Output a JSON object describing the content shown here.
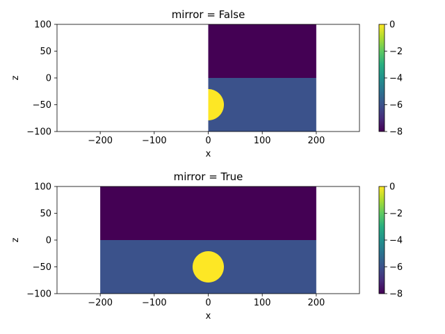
{
  "chart_data": [
    {
      "type": "heatmap",
      "title": "mirror = False",
      "xlabel": "x",
      "ylabel": "z",
      "xlim": [
        -280,
        280
      ],
      "ylim": [
        -100,
        100
      ],
      "xticks": [
        -200,
        -100,
        0,
        100,
        200
      ],
      "xtick_labels": [
        "−200",
        "−100",
        "0",
        "100",
        "200"
      ],
      "yticks": [
        -100,
        -50,
        0,
        50,
        100
      ],
      "ytick_labels": [
        "−100",
        "−50",
        "0",
        "50",
        "100"
      ],
      "regions": [
        {
          "shape": "rect",
          "x": [
            0,
            200
          ],
          "z": [
            0,
            100
          ],
          "value": -8,
          "color": "#440154"
        },
        {
          "shape": "rect",
          "x": [
            0,
            200
          ],
          "z": [
            -100,
            0
          ],
          "value": -6,
          "color": "#3b528b"
        },
        {
          "shape": "half-circle",
          "center": [
            0,
            -50
          ],
          "radius": 29,
          "value": 0,
          "color": "#fde725"
        }
      ],
      "colorbar": {
        "range": [
          -8,
          0
        ],
        "ticks": [
          0,
          -2,
          -4,
          -6,
          -8
        ],
        "tick_labels": [
          "0",
          "−2",
          "−4",
          "−6",
          "−8"
        ],
        "colormap": "viridis"
      }
    },
    {
      "type": "heatmap",
      "title": "mirror = True",
      "xlabel": "x",
      "ylabel": "z",
      "xlim": [
        -280,
        280
      ],
      "ylim": [
        -100,
        100
      ],
      "xticks": [
        -200,
        -100,
        0,
        100,
        200
      ],
      "xtick_labels": [
        "−200",
        "−100",
        "0",
        "100",
        "200"
      ],
      "yticks": [
        -100,
        -50,
        0,
        50,
        100
      ],
      "ytick_labels": [
        "−100",
        "−50",
        "0",
        "50",
        "100"
      ],
      "regions": [
        {
          "shape": "rect",
          "x": [
            -200,
            200
          ],
          "z": [
            0,
            100
          ],
          "value": -8,
          "color": "#440154"
        },
        {
          "shape": "rect",
          "x": [
            -200,
            200
          ],
          "z": [
            -100,
            0
          ],
          "value": -6,
          "color": "#3b528b"
        },
        {
          "shape": "circle",
          "center": [
            0,
            -50
          ],
          "radius": 29,
          "value": 0,
          "color": "#fde725"
        }
      ],
      "colorbar": {
        "range": [
          -8,
          0
        ],
        "ticks": [
          0,
          -2,
          -4,
          -6,
          -8
        ],
        "tick_labels": [
          "0",
          "−2",
          "−4",
          "−6",
          "−8"
        ],
        "colormap": "viridis"
      }
    }
  ]
}
